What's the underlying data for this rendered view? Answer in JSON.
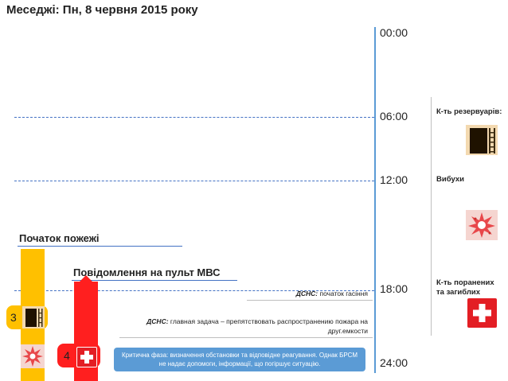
{
  "header": {
    "title": "Меседжі: Пн, 8 червня 2015 року"
  },
  "timeline": {
    "t0": "00:00",
    "t6": "06:00",
    "t12": "12:00",
    "t18": "18:00",
    "t24": "24:00"
  },
  "legend": {
    "reservoirs": "К-ть резервуарів:",
    "explosions": "Вибухи",
    "casualties": "К-ть поранених та загиблих"
  },
  "events": {
    "fire_start": "Початок пожежі",
    "mvs_notice": "Повідомлення на пульт МВС",
    "extinguish_org": "ДСНС:",
    "extinguish_text": "початок гасіння",
    "task_org": "ДСНС:",
    "task_text": "главная задача – препятствовать распространению пожара на друг.емкости"
  },
  "badges": {
    "reservoir_count": "3",
    "casualty_count": "4"
  },
  "callout": {
    "text": "Критична фаза: визначення обстановки та відповідне реагування. Однак БРСМ не надає допомоги, інформації, що погіршує ситуацію."
  },
  "icons": [
    "tank-icon",
    "explosion-icon",
    "medical-cross-icon"
  ],
  "colors": {
    "axis": "#5b9bd5",
    "fire_bar": "#ffc000",
    "notice_bar": "#ff1f1f",
    "callout": "#5b9bd5"
  }
}
